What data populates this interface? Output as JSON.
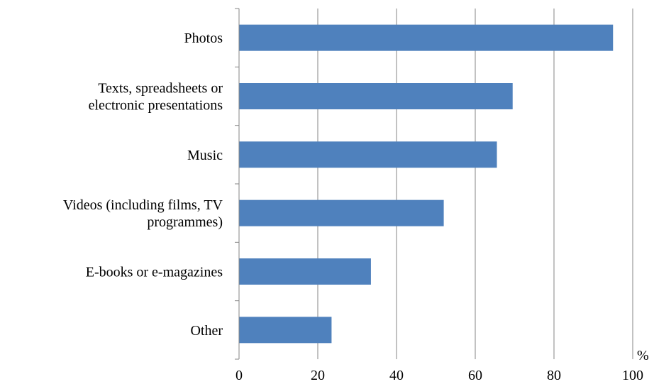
{
  "chart_data": {
    "type": "bar",
    "orientation": "horizontal",
    "title": "",
    "xlabel": "",
    "ylabel": "",
    "unit_label": "%",
    "categories": [
      [
        "Photos"
      ],
      [
        "Texts, spreadsheets or",
        "electronic presentations"
      ],
      [
        "Music"
      ],
      [
        "Videos (including films, TV",
        "programmes)"
      ],
      [
        "E-books or e-magazines"
      ],
      [
        "Other"
      ]
    ],
    "values": [
      95,
      69.5,
      65.5,
      52,
      33.5,
      23.5
    ],
    "xlim": [
      0,
      100
    ],
    "xticks": [
      "0",
      "20",
      "40",
      "60",
      "80",
      "100"
    ],
    "grid": "vertical",
    "legend": "none",
    "bar_color": "#4F81BD",
    "grid_color": "#868686"
  }
}
